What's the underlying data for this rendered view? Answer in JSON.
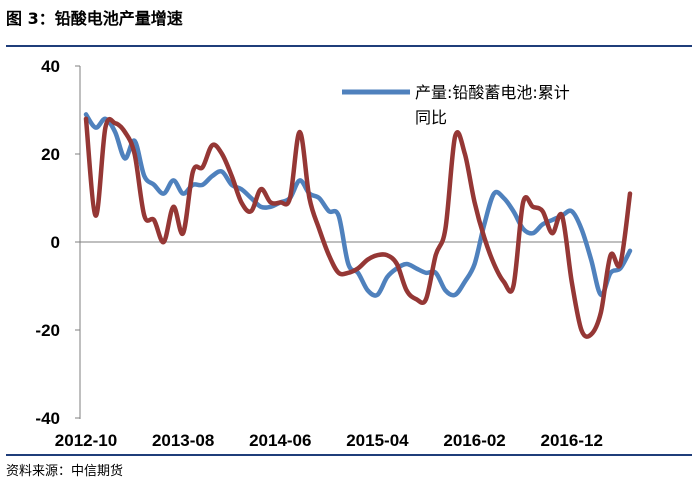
{
  "header": {
    "title": "图 3：铅酸电池产量增速"
  },
  "footer": {
    "source": "资料来源：中信期货"
  },
  "chart_data": {
    "type": "line",
    "title": "图 3：铅酸电池产量增速",
    "xlabel": "",
    "ylabel": "",
    "ylim": [
      -40,
      40
    ],
    "yticks": [
      -40,
      -20,
      0,
      20,
      40
    ],
    "x_tick_labels": [
      "2012-10",
      "2013-08",
      "2014-06",
      "2015-04",
      "2016-02",
      "2016-12"
    ],
    "x": [
      "2012-10",
      "2012-11",
      "2012-12",
      "2013-01",
      "2013-02",
      "2013-03",
      "2013-04",
      "2013-05",
      "2013-06",
      "2013-07",
      "2013-08",
      "2013-09",
      "2013-10",
      "2013-11",
      "2013-12",
      "2014-01",
      "2014-02",
      "2014-03",
      "2014-04",
      "2014-05",
      "2014-06",
      "2014-07",
      "2014-08",
      "2014-09",
      "2014-10",
      "2014-11",
      "2014-12",
      "2015-01",
      "2015-02",
      "2015-03",
      "2015-04",
      "2015-05",
      "2015-06",
      "2015-07",
      "2015-08",
      "2015-09",
      "2015-10",
      "2015-11",
      "2015-12",
      "2016-01",
      "2016-02",
      "2016-03",
      "2016-04",
      "2016-05",
      "2016-06",
      "2016-07",
      "2016-08",
      "2016-09",
      "2016-10",
      "2016-11",
      "2016-12",
      "2017-01",
      "2017-02",
      "2017-03",
      "2017-04",
      "2017-05",
      "2017-06"
    ],
    "legend_position": "top-right",
    "grid": false,
    "colors": {
      "series_1": "#4f81bd",
      "series_2": "#953735",
      "frame": "#1f3d7a"
    },
    "series": [
      {
        "name": "产量:铅酸蓄电池:累计同比",
        "values": [
          29,
          26,
          28,
          25,
          19,
          23,
          15,
          13,
          11,
          14,
          11,
          13,
          13,
          15,
          16,
          13,
          12,
          10,
          8,
          8,
          9,
          10,
          14,
          11,
          10,
          7,
          6,
          -5,
          -7,
          -11,
          -12,
          -8,
          -6,
          -5,
          -6,
          -7,
          -7,
          -11,
          -12,
          -9,
          -5,
          4,
          11,
          10,
          7,
          3,
          2,
          4,
          5,
          6,
          7,
          3,
          -4,
          -12,
          -7,
          -6,
          -2
        ]
      },
      {
        "name": "",
        "values": [
          28,
          6,
          26,
          27,
          25,
          20,
          6,
          5,
          0,
          8,
          2,
          16,
          17,
          22,
          20,
          15,
          9,
          7,
          12,
          9,
          9,
          10,
          25,
          10,
          3,
          -3,
          -7,
          -7,
          -6,
          -4,
          -3,
          -3,
          -5,
          -11,
          -13,
          -13,
          -3,
          3,
          24,
          20,
          9,
          1,
          -5,
          -9,
          -10,
          9,
          8,
          7,
          2,
          6,
          -9,
          -20,
          -21,
          -16,
          -3,
          -5,
          11
        ]
      }
    ]
  }
}
